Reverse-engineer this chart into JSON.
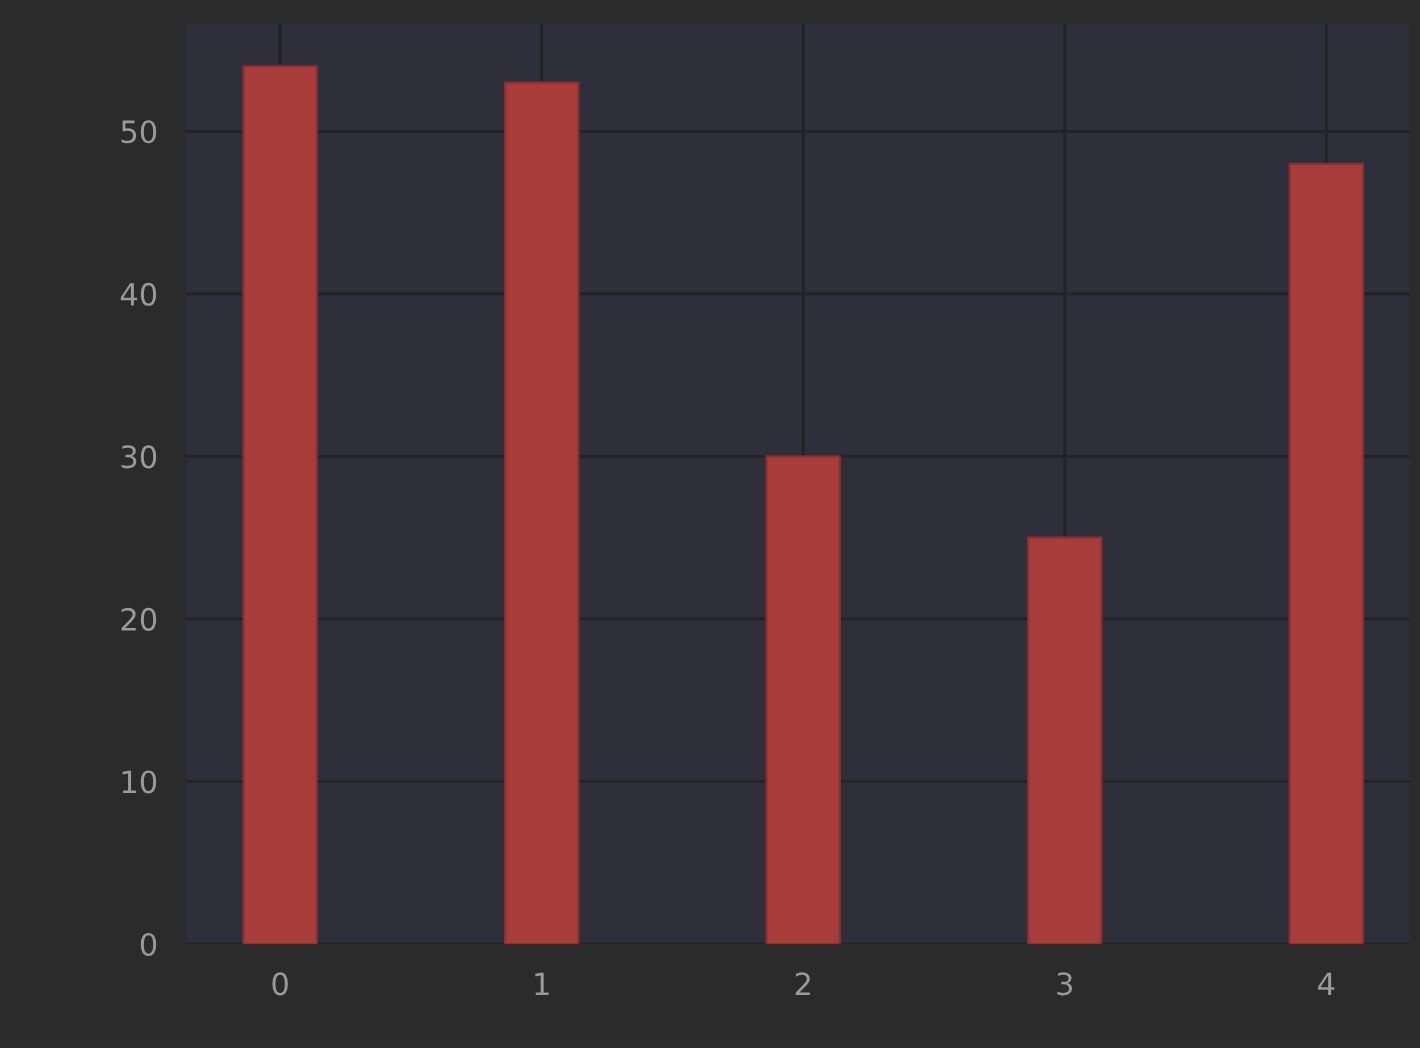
{
  "chart_data": {
    "type": "bar",
    "x": [
      0,
      1,
      2,
      3,
      4
    ],
    "values": [
      54,
      53,
      30,
      25,
      48
    ],
    "color": "#a83c3a",
    "xlim": [
      -0.36,
      4.32
    ],
    "ylim": [
      0,
      56.6
    ],
    "xticks": [
      0,
      1,
      2,
      3,
      4
    ],
    "yticks": [
      0,
      10,
      20,
      30,
      40,
      50
    ],
    "grid": true
  }
}
